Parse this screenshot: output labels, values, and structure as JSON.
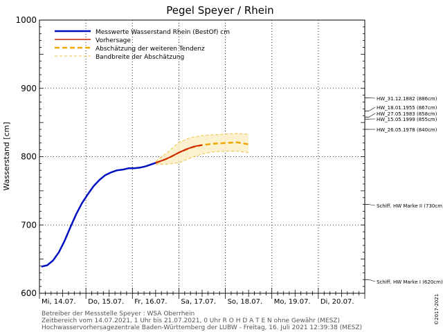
{
  "chart_data": {
    "type": "line",
    "title": "Pegel Speyer / Rhein",
    "ylabel": "Wasserstand [cm]",
    "ylim": [
      600,
      1000
    ],
    "xlim": [
      "2021-07-14T00:00",
      "2021-07-21T00:00"
    ],
    "y_ticks": [
      600,
      700,
      800,
      900,
      1000
    ],
    "x_tick_labels": [
      {
        "date": "2021-07-14",
        "label": "Mi, 14.07."
      },
      {
        "date": "2021-07-15",
        "label": "Do, 15.07."
      },
      {
        "date": "2021-07-16",
        "label": "Fr, 16.07."
      },
      {
        "date": "2021-07-17",
        "label": "Sa, 17.07."
      },
      {
        "date": "2021-07-18",
        "label": "So, 18.07."
      },
      {
        "date": "2021-07-19",
        "label": "Mo, 19.07."
      },
      {
        "date": "2021-07-20",
        "label": "Di, 20.07."
      }
    ],
    "grid": true,
    "legend_position": "top-left",
    "legend": [
      {
        "label": "Messwerte Wasserstand Rhein (BestOf)   cm",
        "style": "solid",
        "color": "#0010c0"
      },
      {
        "label": "Vorhersage",
        "style": "solid",
        "color": "#cc2200"
      },
      {
        "label": "Abschätzung der weiteren Tendenz",
        "style": "dashed",
        "color": "#f0a800"
      },
      {
        "label": "Bandbreite der Abschätzung",
        "style": "dashed-thin",
        "color": "#f0c040"
      }
    ],
    "series": [
      {
        "name": "Messwerte Wasserstand Rhein (BestOf)   cm",
        "x": [
          "2021-07-14T01:00",
          "2021-07-14T04:00",
          "2021-07-14T07:00",
          "2021-07-14T10:00",
          "2021-07-14T13:00",
          "2021-07-14T16:00",
          "2021-07-14T19:00",
          "2021-07-14T22:00",
          "2021-07-15T01:00",
          "2021-07-15T04:00",
          "2021-07-15T07:00",
          "2021-07-15T10:00",
          "2021-07-15T13:00",
          "2021-07-15T16:00",
          "2021-07-15T19:00",
          "2021-07-15T22:00",
          "2021-07-16T01:00",
          "2021-07-16T04:00",
          "2021-07-16T07:00",
          "2021-07-16T10:00",
          "2021-07-16T12:00"
        ],
        "values": [
          639,
          641,
          648,
          660,
          677,
          697,
          716,
          732,
          745,
          757,
          766,
          773,
          777,
          780,
          781,
          783,
          783,
          784,
          786,
          789,
          791
        ]
      },
      {
        "name": "Vorhersage",
        "x": [
          "2021-07-16T12:00",
          "2021-07-16T16:00",
          "2021-07-16T20:00",
          "2021-07-17T00:00",
          "2021-07-17T04:00",
          "2021-07-17T08:00",
          "2021-07-17T12:00"
        ],
        "values": [
          791,
          795,
          800,
          806,
          811,
          815,
          817
        ]
      },
      {
        "name": "Abschätzung der weiteren Tendenz",
        "x": [
          "2021-07-16T12:00",
          "2021-07-16T18:00",
          "2021-07-17T00:00",
          "2021-07-17T06:00",
          "2021-07-17T12:00",
          "2021-07-17T18:00",
          "2021-07-18T00:00",
          "2021-07-18T06:00",
          "2021-07-18T12:00"
        ],
        "values": [
          791,
          797,
          806,
          813,
          817,
          819,
          820,
          821,
          818
        ]
      },
      {
        "name": "Bandbreite der Abschätzung",
        "x": [
          "2021-07-16T12:00",
          "2021-07-16T18:00",
          "2021-07-17T00:00",
          "2021-07-17T06:00",
          "2021-07-17T12:00",
          "2021-07-17T18:00",
          "2021-07-18T00:00",
          "2021-07-18T06:00",
          "2021-07-18T12:00"
        ],
        "upper": [
          793,
          806,
          821,
          828,
          831,
          832,
          833,
          834,
          833
        ],
        "lower": [
          789,
          789,
          791,
          798,
          804,
          807,
          808,
          808,
          806
        ]
      }
    ],
    "reference_levels": [
      {
        "label": "HW_31.12.1882 (886cm)",
        "value": 886
      },
      {
        "label": "HW_18.01.1955 (867cm)",
        "value": 867
      },
      {
        "label": "HW_27.05.1983 (858cm)",
        "value": 858
      },
      {
        "label": "HW_15.05.1999 (855cm)",
        "value": 855
      },
      {
        "label": "HW_26.05.1978 (840cm)",
        "value": 840
      },
      {
        "label": "Schiff. HW Marke II (730cm)",
        "value": 730
      },
      {
        "label": "Schiff. HW Marke I (620cm)",
        "value": 620
      }
    ],
    "footer_lines": [
      "Betreiber der Messstelle Speyer : WSA Oberrhein",
      "Zeitbereich vom 14.07.2021, 1 Uhr bis 21.07.2021, 0 Uhr    R O H D A T E N  ohne Gewähr (MESZ)",
      "Hochwasservorhersagezentrale Baden-Württemberg der LUBW - Freitag, 16. Juli 2021 12:39:38 (MESZ)"
    ],
    "side_note": "©2017-2021"
  }
}
